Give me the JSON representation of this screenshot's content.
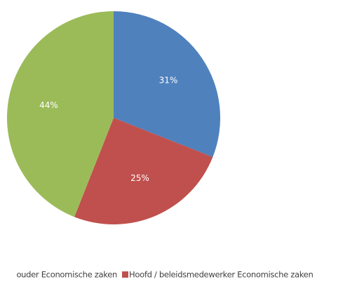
{
  "chart_data": {
    "type": "pie",
    "categories": [
      "ouder Economische zaken",
      "Hoofd / beleidsmedewerker Economische zaken",
      null
    ],
    "values": [
      31,
      25,
      44
    ],
    "value_labels": [
      "31%",
      "25%",
      "44%"
    ],
    "colors": [
      "#4f81bd",
      "#c0504d",
      "#9bbb59"
    ],
    "legend": "bottom"
  }
}
